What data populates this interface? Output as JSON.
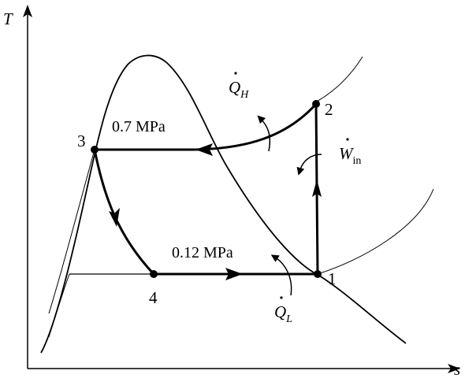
{
  "axes": {
    "y_label": "T",
    "x_label": "s"
  },
  "points": {
    "p1": "1",
    "p2": "2",
    "p3": "3",
    "p4": "4"
  },
  "pressures": {
    "high": "0.7 MPa",
    "low": "0.12 MPa"
  },
  "heat_out": {
    "symbol": "Q",
    "subscript": "H"
  },
  "heat_in": {
    "symbol": "Q",
    "subscript": "L"
  },
  "work_in": {
    "symbol": "W",
    "subscript": "in"
  }
}
